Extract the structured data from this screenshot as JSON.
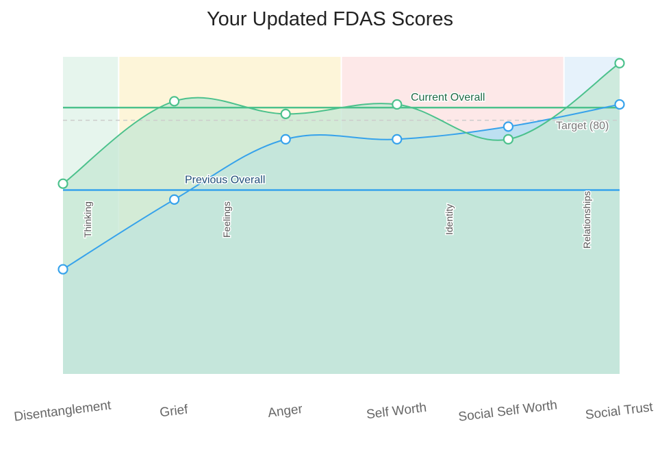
{
  "chart_data": {
    "type": "area",
    "title": "Your Updated FDAS Scores",
    "categories": [
      "Disentanglement",
      "Grief",
      "Anger",
      "Self Worth",
      "Social Self Worth",
      "Social Trust"
    ],
    "ylim": [
      0,
      100
    ],
    "grid": false,
    "series": [
      {
        "key": "previous",
        "values": [
          33,
          55,
          74,
          74,
          78,
          85
        ],
        "color": "#36a2eb",
        "fill": "#bde0f1"
      },
      {
        "key": "current",
        "values": [
          60,
          86,
          82,
          85,
          74,
          98
        ],
        "color": "#4bc18c",
        "fill": "#c6e8d5"
      }
    ],
    "bands": [
      {
        "label": "Thinking",
        "from": 0,
        "to": 0.5,
        "color": "#e6f5ed"
      },
      {
        "label": "Feelings",
        "from": 0.5,
        "to": 2.5,
        "color": "#fdf5d9"
      },
      {
        "label": "Identity",
        "from": 2.5,
        "to": 4.5,
        "color": "#fde8e8"
      },
      {
        "label": "Relationships",
        "from": 4.5,
        "to": 5,
        "color": "#e6f2fb"
      }
    ],
    "reference_lines": [
      {
        "label": "Current Overall",
        "value": 84,
        "color": "#4bc18c",
        "text_color": "#1e6b46",
        "dashed": false
      },
      {
        "label": "Target (80)",
        "value": 80,
        "color": "#cccccc",
        "text_color": "#777777",
        "dashed": true
      },
      {
        "label": "Previous Overall",
        "value": 58,
        "color": "#36a2eb",
        "text_color": "#1f4e79",
        "dashed": false
      }
    ]
  }
}
